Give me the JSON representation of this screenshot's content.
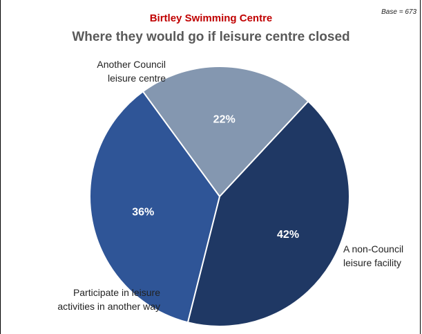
{
  "chart_data": {
    "type": "pie",
    "title": "Where they would go if leisure centre closed",
    "subtitle": "Birtley Swimming Centre",
    "base_note": "Base = 673",
    "slices": [
      {
        "label": "Another Council leisure centre",
        "label_lines": [
          "Another Council",
          "leisure centre"
        ],
        "value": 42,
        "value_label": "42%",
        "color": "#1f3864"
      },
      {
        "label": "A non-Council leisure facility",
        "label_lines": [
          "A non-Council",
          "leisure facility"
        ],
        "value": 36,
        "value_label": "36%",
        "color": "#2f5597"
      },
      {
        "label": "Participate in leisure activities in another way",
        "label_lines": [
          "Participate in leisure",
          "activities in another way"
        ],
        "value": 22,
        "value_label": "22%",
        "color": "#8497b0"
      }
    ],
    "legend": "none"
  }
}
